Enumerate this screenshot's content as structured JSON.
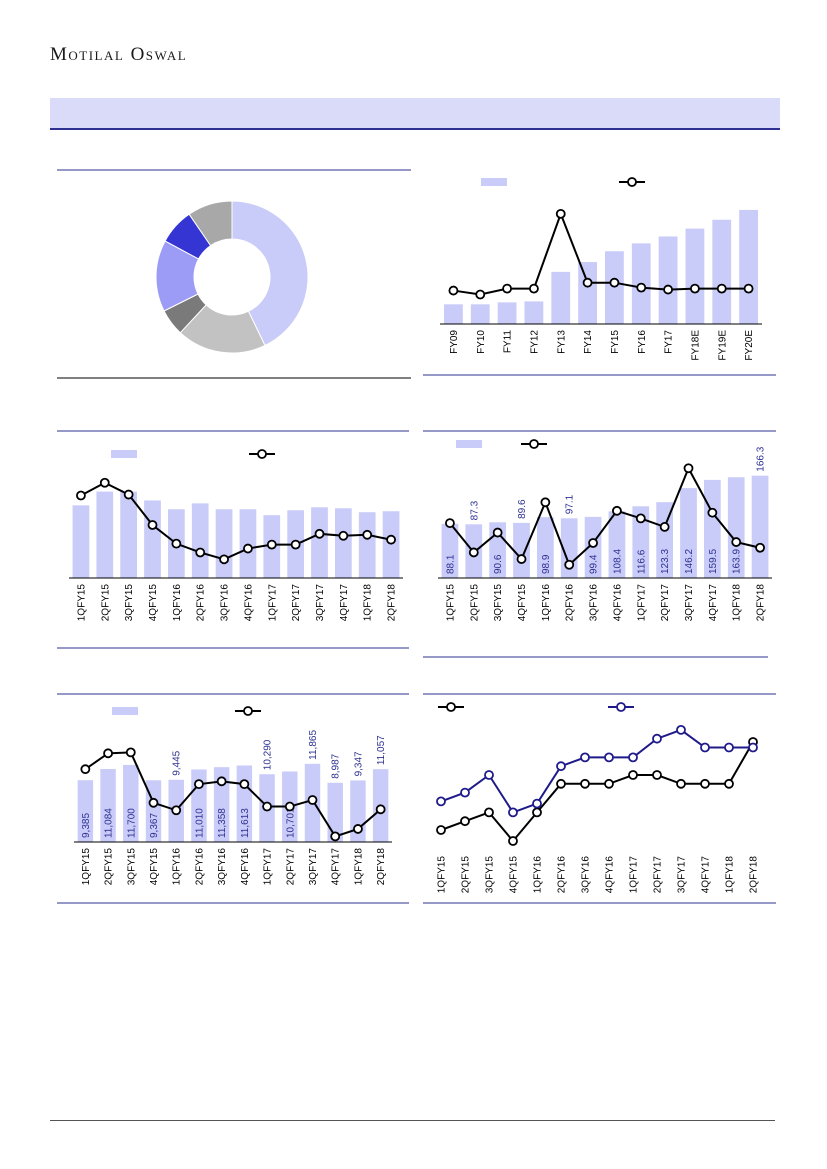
{
  "header": {
    "logo_text": "Motilal Oswal"
  },
  "colors": {
    "bar": "#c9cbf8",
    "line": "#000000",
    "line2": "#1f1a8a",
    "rule": "#2e3192",
    "pie": [
      "#c9cbf8",
      "#c2c2c2",
      "#7a7a7a",
      "#9c9cf6",
      "#3535d4",
      "#a8a8a8"
    ]
  },
  "chart_data": [
    {
      "type": "pie",
      "donut": true,
      "values": [
        45,
        20,
        6,
        16,
        8,
        10
      ]
    },
    {
      "type": "bar",
      "categories": [
        "FY09",
        "FY10",
        "FY11",
        "FY12",
        "FY13",
        "FY14",
        "FY15",
        "FY16",
        "FY17",
        "FY18E",
        "FY19E",
        "FY20E"
      ],
      "bar_values": [
        20,
        20,
        22,
        23,
        53,
        63,
        74,
        82,
        89,
        97,
        106,
        116
      ],
      "line_values": [
        34,
        30,
        36,
        36,
        112,
        42,
        42,
        37,
        35,
        36,
        36,
        36
      ],
      "ylim": [
        0,
        120
      ],
      "line_ylim": [
        0,
        120
      ]
    },
    {
      "type": "bar",
      "categories": [
        "1QFY15",
        "2QFY15",
        "3QFY15",
        "4QFY15",
        "1QFY16",
        "2QFY16",
        "3QFY16",
        "4QFY16",
        "1QFY17",
        "2QFY17",
        "3QFY17",
        "4QFY17",
        "1QFY18",
        "2QFY18"
      ],
      "bar_values": [
        74,
        88,
        88,
        79,
        70,
        76,
        70,
        70,
        64,
        69,
        72,
        71,
        67,
        68
      ],
      "line_values": [
        84,
        97,
        85,
        54,
        35,
        26,
        19,
        30,
        34,
        34,
        45,
        43,
        44,
        39
      ],
      "ylim": [
        0,
        110
      ],
      "line_ylim": [
        0,
        110
      ]
    },
    {
      "type": "bar",
      "categories": [
        "1QFY15",
        "2QFY15",
        "3QFY15",
        "4QFY15",
        "1QFY16",
        "2QFY16",
        "3QFY16",
        "4QFY16",
        "1QFY17",
        "2QFY17",
        "3QFY17",
        "4QFY17",
        "1QFY18",
        "2QFY18"
      ],
      "bar_values": [
        88.1,
        87.3,
        90.6,
        89.6,
        98.9,
        97.1,
        99.4,
        108.4,
        116.6,
        123.3,
        146.2,
        159.5,
        163.9,
        166.3
      ],
      "bar_labels": [
        "88.1",
        "87.3",
        "90.6",
        "89.6",
        "98.9",
        "97.1",
        "99.4",
        "108.4",
        "116.6",
        "123.3",
        "146.2",
        "159.5",
        "163.9",
        "166.3"
      ],
      "label_positions": [
        "in",
        "above",
        "in",
        "above",
        "in",
        "above",
        "in",
        "in",
        "in",
        "in",
        "in",
        "in",
        "in",
        "above"
      ],
      "line_values": [
        58,
        27,
        48,
        20,
        80,
        14,
        37,
        71,
        63,
        54,
        116,
        69,
        38,
        32
      ],
      "ylim": [
        0,
        200
      ],
      "line_ylim": [
        0,
        130
      ]
    },
    {
      "type": "bar",
      "categories": [
        "1QFY15",
        "2QFY15",
        "3QFY15",
        "4QFY15",
        "1QFY16",
        "2QFY16",
        "3QFY16",
        "4QFY16",
        "1QFY17",
        "2QFY17",
        "3QFY17",
        "4QFY17",
        "1QFY18",
        "2QFY18"
      ],
      "bar_values": [
        9385,
        11084,
        11700,
        9367,
        9445,
        11010,
        11358,
        11613,
        10290,
        10701,
        11865,
        8987,
        9347,
        11057
      ],
      "bar_labels": [
        "9,385",
        "11,084",
        "11,700",
        "9,367",
        "9,445",
        "11,010",
        "11,358",
        "11,613",
        "10,290",
        "10,701",
        "11,865",
        "8,987",
        "9,347",
        "11,057"
      ],
      "label_positions": [
        "in",
        "in",
        "in",
        "in",
        "above",
        "in",
        "in",
        "in",
        "above",
        "in",
        "above",
        "above",
        "above",
        "above"
      ],
      "line_values": [
        78,
        95,
        96,
        42,
        34,
        62,
        65,
        62,
        38,
        38,
        45,
        6,
        14,
        35
      ],
      "ylim": [
        0,
        17000
      ],
      "line_ylim": [
        0,
        120
      ]
    },
    {
      "type": "line",
      "categories": [
        "1QFY15",
        "2QFY15",
        "3QFY15",
        "4QFY15",
        "1QFY16",
        "2QFY16",
        "3QFY16",
        "4QFY16",
        "1QFY17",
        "2QFY17",
        "3QFY17",
        "4QFY17",
        "1QFY18",
        "2QFY18"
      ],
      "series": [
        {
          "values": [
            20,
            28,
            36,
            10,
            36,
            62,
            62,
            62,
            70,
            70,
            62,
            62,
            62,
            100
          ]
        },
        {
          "values": [
            46,
            54,
            70,
            36,
            44,
            78,
            86,
            86,
            86,
            103,
            111,
            95,
            95,
            95
          ]
        }
      ],
      "ylim": [
        0,
        120
      ]
    }
  ]
}
